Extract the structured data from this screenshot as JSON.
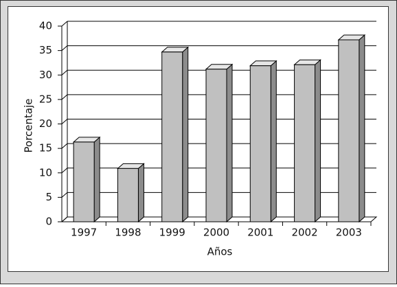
{
  "chart_data": {
    "type": "bar",
    "x_label": "Años",
    "y_label": "Porcentaje",
    "categories": [
      "1997",
      "1998",
      "1999",
      "2000",
      "2001",
      "2002",
      "2003"
    ],
    "values": [
      16.3,
      10.9,
      34.7,
      31.2,
      31.9,
      32.1,
      37.2
    ],
    "color": "#c0c0c0",
    "ylim": [
      0,
      40
    ],
    "yticks": [
      0,
      5,
      10,
      15,
      20,
      25,
      30,
      35,
      40
    ],
    "grid": true
  }
}
